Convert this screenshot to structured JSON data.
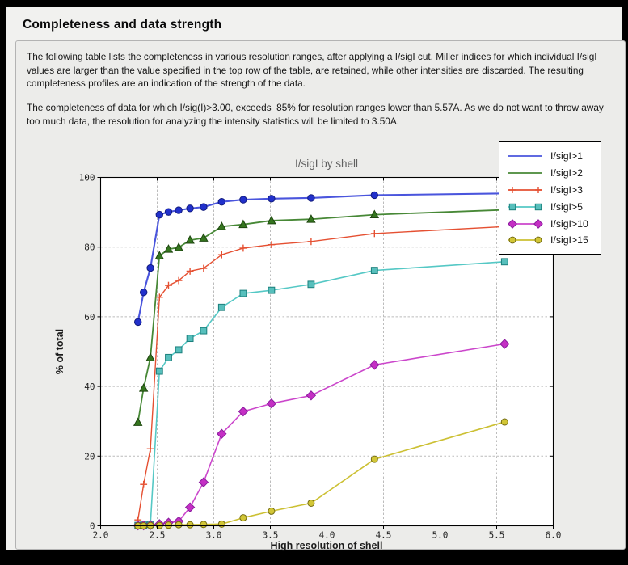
{
  "page": {
    "title": "Completeness and data strength"
  },
  "description": {
    "para1": "The following table lists the completeness in various resolution ranges, after applying a I/sigI cut. Miller indices for which individual I/sigI values are larger than the value specified in the top row of the table, are retained, while other intensities are discarded. The resulting completeness profiles are an indication of the strength of the data.",
    "para2": "The completeness of data for which I/sig(I)>3.00, exceeds  85% for resolution ranges lower than 5.57A. As we do not want to throw away too much data, the resolution for analyzing the intensity statistics will be limited to 3.50A."
  },
  "chart_data": {
    "type": "line",
    "title": "I/sigI by shell",
    "xlabel": "High resolution of shell",
    "ylabel": "% of total",
    "xlim": [
      2.0,
      6.0
    ],
    "ylim": [
      0,
      100
    ],
    "xticks": [
      2.0,
      2.5,
      3.0,
      3.5,
      4.0,
      4.5,
      5.0,
      5.5,
      6.0
    ],
    "xtick_labels": [
      "2.0",
      "2.5",
      "3.0",
      "3.5",
      "4.0",
      "4.5",
      "5.0",
      "5.5",
      "6.0"
    ],
    "yticks": [
      0,
      20,
      40,
      60,
      80,
      100
    ],
    "ytick_labels": [
      "0",
      "20",
      "40",
      "60",
      "80",
      "100"
    ],
    "grid": true,
    "legend_position": "top-right",
    "x": [
      2.33,
      2.38,
      2.44,
      2.52,
      2.6,
      2.69,
      2.79,
      2.91,
      3.07,
      3.26,
      3.51,
      3.86,
      4.42,
      5.57
    ],
    "series": [
      {
        "name": "I/sigI>1",
        "color": "#4a55dd",
        "line_width": 2.1,
        "marker": "circle",
        "marker_fill": "#2130cb",
        "marker_edge": "#111b7e",
        "legend_marker": false,
        "values": [
          58.5,
          67.0,
          74.0,
          89.3,
          90.1,
          90.6,
          91.1,
          91.5,
          93.0,
          93.6,
          93.9,
          94.1,
          94.9,
          95.4
        ]
      },
      {
        "name": "I/sigI>2",
        "color": "#478836",
        "line_width": 1.8,
        "marker": "triangle",
        "marker_fill": "#35761f",
        "marker_edge": "#1d450f",
        "legend_marker": false,
        "values": [
          29.7,
          39.5,
          48.3,
          77.5,
          79.4,
          79.9,
          82.0,
          82.6,
          85.9,
          86.5,
          87.6,
          88.0,
          89.3,
          90.7
        ]
      },
      {
        "name": "I/sigI>3",
        "color": "#e55032",
        "line_width": 1.4,
        "marker": "plus",
        "marker_fill": "#e55032",
        "marker_edge": "#e55032",
        "legend_marker": true,
        "values": [
          1.7,
          11.9,
          22.1,
          65.6,
          69.0,
          70.4,
          73.1,
          73.9,
          77.8,
          79.7,
          80.7,
          81.6,
          83.9,
          85.9
        ]
      },
      {
        "name": "I/sigI>5",
        "color": "#55c8c5",
        "line_width": 1.6,
        "marker": "square",
        "marker_fill": "#57bfbc",
        "marker_edge": "#1b7f7c",
        "legend_marker": true,
        "values": [
          0.1,
          0.2,
          0.4,
          44.4,
          48.3,
          50.5,
          53.8,
          56.0,
          62.7,
          66.7,
          67.6,
          69.3,
          73.3,
          75.8
        ]
      },
      {
        "name": "I/sigI>10",
        "color": "#cb46cb",
        "line_width": 1.6,
        "marker": "diamond",
        "marker_fill": "#c42fc4",
        "marker_edge": "#8a1d9e",
        "legend_marker": true,
        "values": [
          0.1,
          0.1,
          0.2,
          0.5,
          0.9,
          1.3,
          5.3,
          12.5,
          26.4,
          32.8,
          35.1,
          37.4,
          46.2,
          52.2
        ]
      },
      {
        "name": "I/sigI>15",
        "color": "#ccc033",
        "line_width": 1.6,
        "marker": "circle-sm",
        "marker_fill": "#d2c636",
        "marker_edge": "#756d12",
        "legend_marker": true,
        "values": [
          0.0,
          0.0,
          0.1,
          0.1,
          0.2,
          0.3,
          0.3,
          0.4,
          0.5,
          2.3,
          4.2,
          6.5,
          19.1,
          29.8
        ]
      }
    ]
  }
}
